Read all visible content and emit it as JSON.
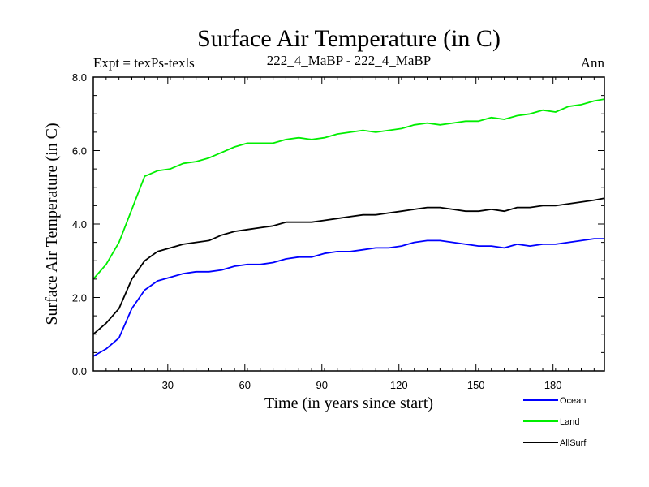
{
  "chart_data": {
    "type": "line",
    "title": "Surface Air Temperature (in C)",
    "subtitle_left": "Expt = texPs-texls",
    "subtitle_center": "222_4_MaBP - 222_4_MaBP",
    "subtitle_right": "Ann",
    "xlabel": "Time (in years since start)",
    "ylabel": "Surface Air Temperature (in C)",
    "xlim": [
      1,
      200
    ],
    "ylim": [
      0,
      8
    ],
    "xticks": [
      30,
      60,
      90,
      120,
      150,
      180
    ],
    "xtick_labels": [
      "30",
      "60",
      "90",
      "120",
      "150",
      "180"
    ],
    "yticks": [
      0,
      2,
      4,
      6,
      8
    ],
    "ytick_labels": [
      "0.0",
      "2.0",
      "4.0",
      "6.0",
      "8.0"
    ],
    "x_step": 5,
    "series": [
      {
        "name": "Ocean",
        "color": "#0000ff",
        "x_start": 1,
        "values": [
          0.4,
          0.6,
          0.9,
          1.7,
          2.2,
          2.45,
          2.55,
          2.65,
          2.7,
          2.7,
          2.75,
          2.85,
          2.9,
          2.9,
          2.95,
          3.05,
          3.1,
          3.1,
          3.2,
          3.25,
          3.25,
          3.3,
          3.35,
          3.35,
          3.4,
          3.5,
          3.55,
          3.55,
          3.5,
          3.45,
          3.4,
          3.4,
          3.35,
          3.45,
          3.4,
          3.45,
          3.45,
          3.5,
          3.55,
          3.6,
          3.6
        ]
      },
      {
        "name": "Land",
        "color": "#00ee00",
        "x_start": 1,
        "values": [
          2.5,
          2.9,
          3.5,
          4.4,
          5.3,
          5.45,
          5.5,
          5.65,
          5.7,
          5.8,
          5.95,
          6.1,
          6.2,
          6.2,
          6.2,
          6.3,
          6.35,
          6.3,
          6.35,
          6.45,
          6.5,
          6.55,
          6.5,
          6.55,
          6.6,
          6.7,
          6.75,
          6.7,
          6.75,
          6.8,
          6.8,
          6.9,
          6.85,
          6.95,
          7.0,
          7.1,
          7.05,
          7.2,
          7.25,
          7.35,
          7.4
        ]
      },
      {
        "name": "AllSurf",
        "color": "#000000",
        "x_start": 1,
        "values": [
          1.0,
          1.3,
          1.7,
          2.5,
          3.0,
          3.25,
          3.35,
          3.45,
          3.5,
          3.55,
          3.7,
          3.8,
          3.85,
          3.9,
          3.95,
          4.05,
          4.05,
          4.05,
          4.1,
          4.15,
          4.2,
          4.25,
          4.25,
          4.3,
          4.35,
          4.4,
          4.45,
          4.45,
          4.4,
          4.35,
          4.35,
          4.4,
          4.35,
          4.45,
          4.45,
          4.5,
          4.5,
          4.55,
          4.6,
          4.65,
          4.7
        ]
      }
    ],
    "legend_position": "bottom-right"
  }
}
